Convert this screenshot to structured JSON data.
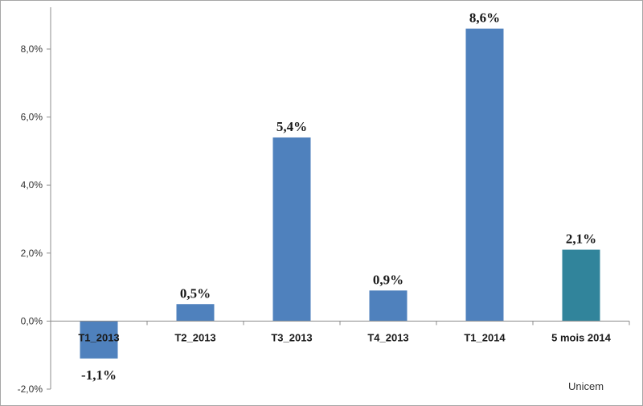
{
  "chart_data": {
    "type": "bar",
    "categories": [
      "T1_2013",
      "T2_2013",
      "T3_2013",
      "T4_2013",
      "T1_2014",
      "5 mois 2014"
    ],
    "values": [
      -1.1,
      0.5,
      5.4,
      0.9,
      8.6,
      2.1
    ],
    "data_labels": [
      "-1,1%",
      "0,5%",
      "5,4%",
      "0,9%",
      "8,6%",
      "2,1%"
    ],
    "bar_colors": [
      "#4f81bd",
      "#4f81bd",
      "#4f81bd",
      "#4f81bd",
      "#4f81bd",
      "#31849b"
    ],
    "ylim": [
      -2,
      8
    ],
    "yticks": [
      -2,
      0,
      2,
      4,
      6,
      8
    ],
    "ytick_labels": [
      "-2,0%",
      "0,0%",
      "2,0%",
      "4,0%",
      "6,0%",
      "8,0%"
    ],
    "title": "",
    "xlabel": "",
    "ylabel": "",
    "grid": false,
    "legend": "none",
    "source": "Unicem"
  }
}
